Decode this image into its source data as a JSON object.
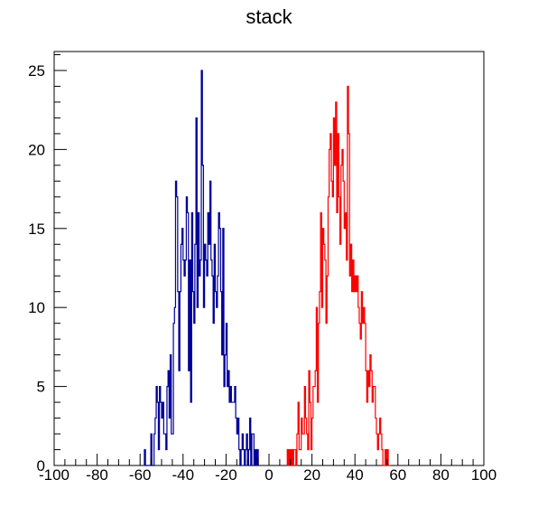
{
  "chart_data": {
    "type": "histogram",
    "title": "stack",
    "xlabel": "",
    "ylabel": "",
    "xlim": [
      -100,
      100
    ],
    "ylim": [
      0,
      26.2
    ],
    "x_ticks": [
      -100,
      -80,
      -60,
      -40,
      -20,
      0,
      20,
      40,
      60,
      80,
      100
    ],
    "y_ticks": [
      0,
      5,
      10,
      15,
      20,
      25
    ],
    "grid": false,
    "legend": "none",
    "bin_width": 0.5,
    "series": [
      {
        "color": "#000099",
        "bin_start": -58,
        "values": [
          1,
          0,
          0,
          0,
          0,
          0,
          2,
          0,
          0,
          2,
          3,
          5,
          4,
          1,
          5,
          4,
          3,
          4,
          2,
          2,
          1,
          5,
          6,
          3,
          7,
          2,
          2,
          9,
          10,
          18,
          17,
          11,
          6,
          11,
          14,
          15,
          13,
          12,
          13,
          17,
          16,
          6,
          13,
          4,
          16,
          11,
          9,
          14,
          22,
          10,
          16,
          12,
          13,
          25,
          19,
          10,
          14,
          13,
          12,
          16,
          14,
          18,
          13,
          12,
          9,
          14,
          11,
          10,
          12,
          16,
          15,
          11,
          7,
          15,
          5,
          7,
          9,
          5,
          6,
          4,
          5,
          4,
          4,
          4,
          5,
          3,
          2,
          3,
          1,
          0,
          1,
          2,
          1,
          0,
          1,
          2,
          0,
          1,
          3,
          0,
          2,
          2,
          0,
          1,
          0,
          1
        ]
      },
      {
        "color": "#ff0000",
        "bin_start": 8.5,
        "values": [
          1,
          0,
          1,
          0,
          1,
          0,
          1,
          1,
          0,
          2,
          4,
          1,
          1,
          3,
          2,
          2,
          5,
          3,
          2,
          1,
          6,
          4,
          1,
          3,
          5,
          5,
          6,
          10,
          4,
          9,
          11,
          16,
          10,
          15,
          14,
          13,
          9,
          12,
          17,
          20,
          21,
          18,
          17,
          22,
          19,
          23,
          16,
          21,
          17,
          14,
          19,
          20,
          18,
          15,
          16,
          13,
          24,
          21,
          12,
          14,
          11,
          13,
          11,
          12,
          11,
          12,
          10,
          9,
          8,
          11,
          9,
          10,
          9,
          6,
          4,
          6,
          5,
          7,
          6,
          4,
          5,
          5,
          3,
          2,
          1,
          2,
          3,
          2,
          1,
          0,
          0,
          1,
          0,
          1,
          0,
          0
        ]
      }
    ]
  }
}
